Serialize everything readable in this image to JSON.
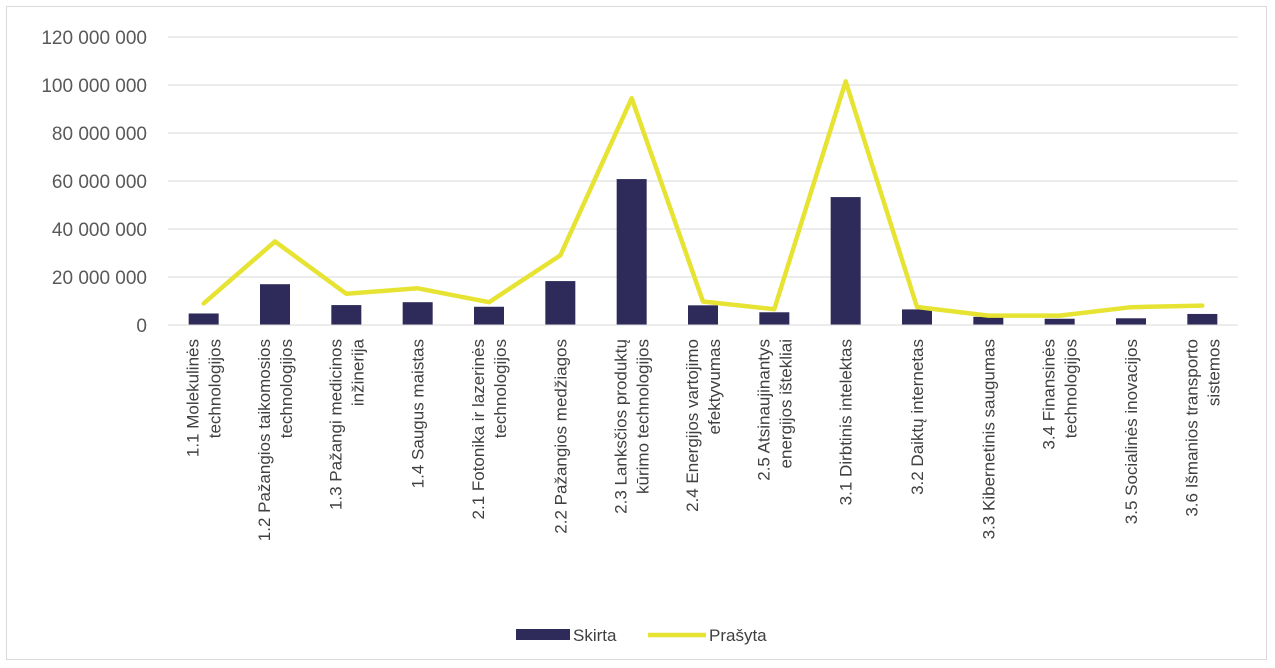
{
  "chart_data": {
    "type": "bar",
    "categories": [
      [
        "1.1 Molekulinės",
        "technologijos"
      ],
      [
        "1.2 Pažangios taikomosios",
        "technologijos"
      ],
      [
        "1.3 Pažangi medicinos",
        "inžinerija"
      ],
      [
        "1.4 Saugus maistas"
      ],
      [
        "2.1 Fotonika ir lazerinės",
        "technologijos"
      ],
      [
        "2.2 Pažangios medžiagos"
      ],
      [
        "2.3 Lanksčios produktų",
        "kūrimo technologijos"
      ],
      [
        "2.4 Energijos vartojimo",
        "efektyvumas"
      ],
      [
        "2.5 Atsinaujinantys",
        "energijos ištekliai"
      ],
      [
        "3.1 Dirbtinis intelektas"
      ],
      [
        "3.2 Daiktų internetas"
      ],
      [
        "3.3 Kibernetinis saugumas"
      ],
      [
        "3.4 Finansinės",
        "technologijos"
      ],
      [
        "3.5 Socialinės inovacijos"
      ],
      [
        "3.6 Išmanios transporto",
        "sistemos"
      ]
    ],
    "series": [
      {
        "name": "Skirta",
        "type": "bar",
        "color": "#2e2a59",
        "values": [
          4800000,
          17000000,
          8300000,
          9500000,
          7600000,
          18300000,
          60800000,
          8200000,
          5300000,
          53300000,
          6500000,
          3400000,
          2600000,
          2800000,
          4600000
        ]
      },
      {
        "name": "Prašyta",
        "type": "line",
        "color": "#e6e333",
        "values": [
          9000000,
          34800000,
          13000000,
          15300000,
          9500000,
          29000000,
          94500000,
          9800000,
          6600000,
          101500000,
          7500000,
          3900000,
          3900000,
          7400000,
          8100000
        ]
      }
    ],
    "ylim": [
      0,
      120000000
    ],
    "yticks": [
      0,
      20000000,
      40000000,
      60000000,
      80000000,
      100000000,
      120000000
    ],
    "ytick_labels": [
      "0",
      "20 000 000",
      "40 000 000",
      "60 000 000",
      "80 000 000",
      "100 000 000",
      "120 000 000"
    ],
    "grid": true,
    "legend": "bottom",
    "title": "",
    "xlabel": "",
    "ylabel": ""
  }
}
